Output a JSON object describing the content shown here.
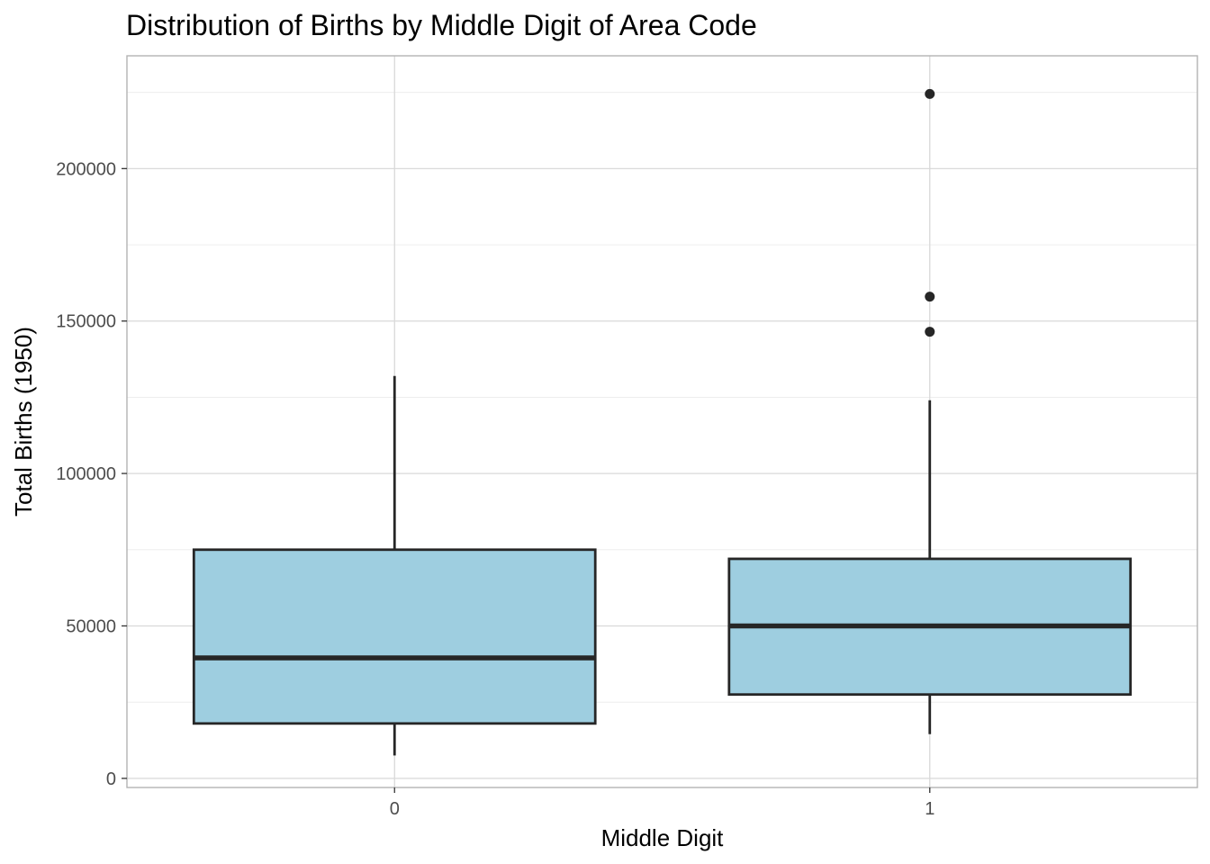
{
  "chart_data": {
    "type": "box",
    "title": "Distribution of Births by Middle Digit of Area Code",
    "xlabel": "Middle Digit",
    "ylabel": "Total Births (1950)",
    "categories": [
      "0",
      "1"
    ],
    "ylim": [
      -3000,
      237000
    ],
    "yticks": [
      0,
      50000,
      100000,
      150000,
      200000
    ],
    "ytick_labels": [
      "0",
      "50000",
      "100000",
      "150000",
      "200000"
    ],
    "grid": true,
    "boxes": [
      {
        "category": "0",
        "whisker_low": 7500,
        "q1": 18000,
        "median": 39500,
        "q3": 75000,
        "whisker_high": 132000,
        "outliers": []
      },
      {
        "category": "1",
        "whisker_low": 14500,
        "q1": 27500,
        "median": 50000,
        "q3": 72000,
        "whisker_high": 124000,
        "outliers": [
          146500,
          158000,
          224500
        ]
      }
    ],
    "colors": {
      "box_fill": "#9ecee0",
      "box_outline": "#262626",
      "outlier": "#262626"
    }
  }
}
